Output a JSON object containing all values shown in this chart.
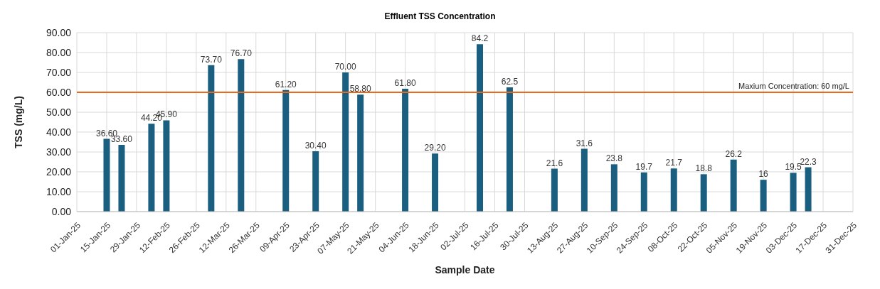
{
  "chart_data": {
    "type": "bar",
    "title": "Effluent TSS Concentration",
    "xlabel": "Sample Date",
    "ylabel": "TSS (mg/L)",
    "x": [
      "--01-15",
      "--01-22",
      "--02-05",
      "--02-12",
      "--03-05",
      "--03-19",
      "--04-09",
      "--04-23",
      "--05-07",
      "--05-14",
      "--06-04",
      "--06-18",
      "--07-09",
      "--07-23",
      "--08-13",
      "--08-27",
      "--09-10",
      "--09-24",
      "--10-08",
      "--10-22",
      "--11-05",
      "--11-19",
      "--12-03",
      "--12-10"
    ],
    "series": [
      {
        "color": "#1a5f80",
        "values": [
          36.6,
          33.6,
          44.2,
          45.9,
          73.7,
          76.7,
          61.2,
          30.4,
          70.0,
          58.8,
          61.8,
          29.2,
          84.2,
          62.5,
          21.6,
          31.6,
          23.8,
          19.7,
          21.7,
          18.8,
          26.2,
          16,
          19.5,
          22.3
        ],
        "value_labels": [
          "36.60",
          "33.60",
          "44.20",
          "45.90",
          "73.70",
          "76.70",
          "61.20",
          "30.40",
          "70.00",
          "58.80",
          "61.80",
          "29.20",
          "84.2",
          "62.5",
          "21.6",
          "31.6",
          "23.8",
          "19.7",
          "21.7",
          "18.8",
          "26.2",
          "16",
          "19.5",
          "22.3"
        ]
      }
    ],
    "xlim": [
      "--01-01",
      "--12-31"
    ],
    "xticks": [
      {
        "value": "--01-01",
        "label": "01-Jan-25"
      },
      {
        "value": "--01-15",
        "label": "15-Jan-25"
      },
      {
        "value": "--01-29",
        "label": "29-Jan-25"
      },
      {
        "value": "--02-12",
        "label": "12-Feb-25"
      },
      {
        "value": "--02-26",
        "label": "26-Feb-25"
      },
      {
        "value": "--03-12",
        "label": "12-Mar-25"
      },
      {
        "value": "--03-26",
        "label": "26-Mar-25"
      },
      {
        "value": "--04-09",
        "label": "09-Apr-25"
      },
      {
        "value": "--04-23",
        "label": "23-Apr-25"
      },
      {
        "value": "--05-07",
        "label": "07-May-25"
      },
      {
        "value": "--05-21",
        "label": "21-May-25"
      },
      {
        "value": "--06-04",
        "label": "04-Jun-25"
      },
      {
        "value": "--06-18",
        "label": "18-Jun-25"
      },
      {
        "value": "--07-02",
        "label": "02-Jul-25"
      },
      {
        "value": "--07-16",
        "label": "16-Jul-25"
      },
      {
        "value": "--07-30",
        "label": "30-Jul-25"
      },
      {
        "value": "--08-13",
        "label": "13-Aug-25"
      },
      {
        "value": "--08-27",
        "label": "27-Aug-25"
      },
      {
        "value": "--09-10",
        "label": "10-Sep-25"
      },
      {
        "value": "--09-24",
        "label": "24-Sep-25"
      },
      {
        "value": "--10-08",
        "label": "08-Oct-25"
      },
      {
        "value": "--10-22",
        "label": "22-Oct-25"
      },
      {
        "value": "--11-05",
        "label": "05-Nov-25"
      },
      {
        "value": "--11-19",
        "label": "19-Nov-25"
      },
      {
        "value": "--12-03",
        "label": "03-Dec-25"
      },
      {
        "value": "--12-17",
        "label": "17-Dec-25"
      },
      {
        "value": "--12-31",
        "label": "31-Dec-25"
      }
    ],
    "ylim": [
      0,
      90
    ],
    "yticks": [
      {
        "value": 0,
        "label": "0.00"
      },
      {
        "value": 10,
        "label": "10.00"
      },
      {
        "value": 20,
        "label": "20.00"
      },
      {
        "value": 30,
        "label": "30.00"
      },
      {
        "value": 40,
        "label": "40.00"
      },
      {
        "value": 50,
        "label": "50.00"
      },
      {
        "value": 60,
        "label": "60.00"
      },
      {
        "value": 70,
        "label": "70.00"
      },
      {
        "value": 80,
        "label": "80.00"
      },
      {
        "value": 90,
        "label": "90.00"
      }
    ],
    "ref_lines": [
      {
        "axis": "y",
        "value": 60,
        "label": "Maxium Concentration: 60 mg/L",
        "color": "#e8691e"
      }
    ],
    "grid": true
  }
}
